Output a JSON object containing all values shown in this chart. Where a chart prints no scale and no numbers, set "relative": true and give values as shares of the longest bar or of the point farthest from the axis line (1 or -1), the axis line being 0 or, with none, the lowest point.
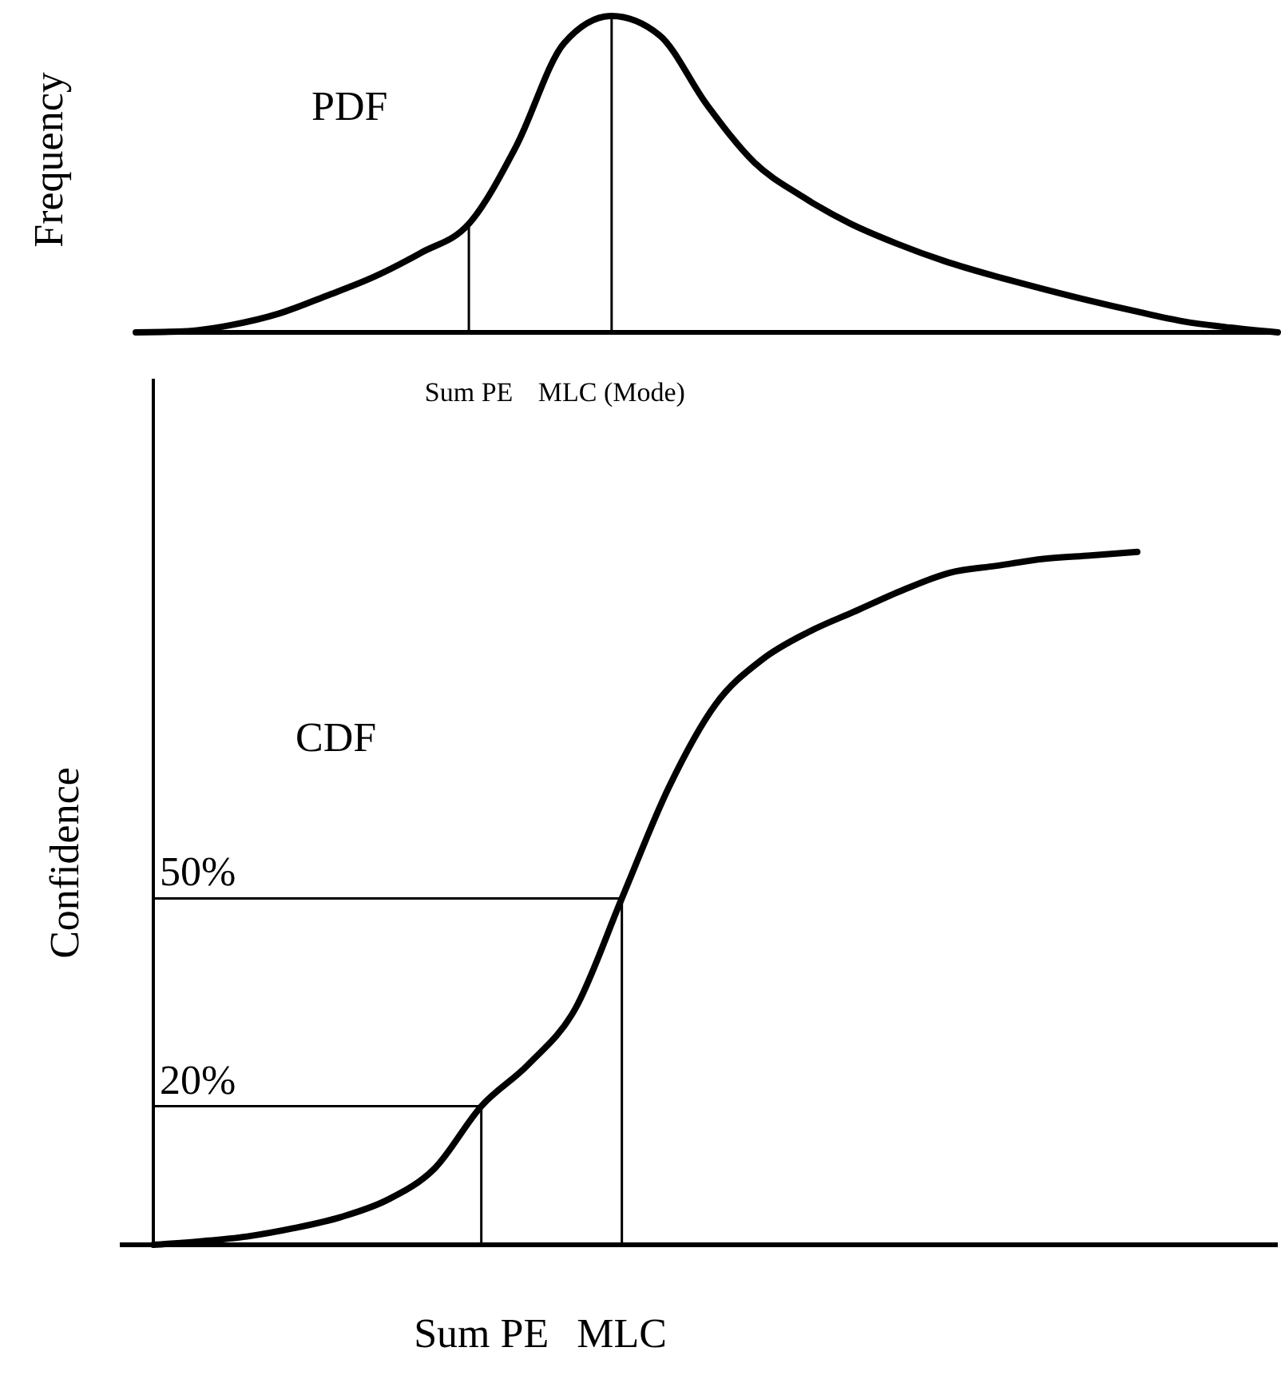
{
  "chart_data": [
    {
      "type": "line",
      "title": "PDF",
      "ylabel": "Frequency",
      "relative": true,
      "categories": [
        null,
        null,
        null,
        null,
        null,
        null,
        null,
        "Sum PE",
        null,
        null,
        "MLC (Mode)",
        null,
        null,
        null,
        null,
        null,
        null,
        null,
        null,
        null,
        null,
        null,
        null,
        null,
        null
      ],
      "values": [
        0,
        0.003,
        0.023,
        0.059,
        0.115,
        0.175,
        0.252,
        0.343,
        0.59,
        0.914,
        1,
        0.94,
        0.72,
        0.537,
        0.43,
        0.345,
        0.28,
        0.225,
        0.18,
        0.14,
        0.102,
        0.067,
        0.035,
        0.015,
        0
      ],
      "color": "#000000",
      "ref_lines": [
        {
          "axis": "x",
          "value": "Sum PE"
        },
        {
          "axis": "x",
          "value": "MLC (Mode)"
        }
      ]
    },
    {
      "type": "line",
      "title": "CDF",
      "ylabel": "Confidence",
      "ylim": [
        0,
        125
      ],
      "categories": [
        null,
        null,
        null,
        null,
        null,
        null,
        null,
        "Sum PE",
        null,
        null,
        "MLC",
        null,
        null,
        null,
        null,
        null,
        null,
        null,
        null,
        null,
        null,
        null,
        null,
        null,
        null
      ],
      "values": [
        0,
        0.5,
        1.2,
        2.4,
        4,
        6.5,
        11,
        20,
        26,
        34,
        50,
        66,
        78,
        84.5,
        88.5,
        91.5,
        94.5,
        97,
        98,
        99,
        99.5,
        100,
        null,
        null,
        null
      ],
      "color": "#000000",
      "ref_lines": [
        {
          "axis": "y",
          "value": 50,
          "label": "50%"
        },
        {
          "axis": "y",
          "value": 20,
          "label": "20%"
        },
        {
          "axis": "x",
          "value": "Sum PE"
        },
        {
          "axis": "x",
          "value": "MLC"
        }
      ]
    }
  ]
}
